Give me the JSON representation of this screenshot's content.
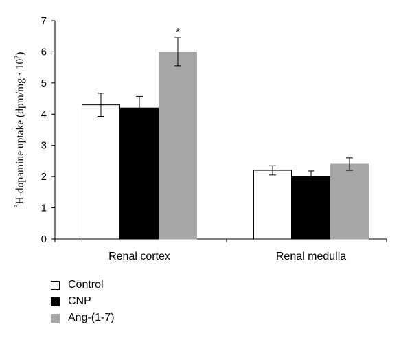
{
  "chart_data": {
    "type": "bar",
    "categories": [
      "Renal cortex",
      "Renal medulla"
    ],
    "series": [
      {
        "name": "Control",
        "values": [
          4.3,
          2.2
        ],
        "errors": [
          0.37,
          0.15
        ],
        "color": "#ffffff",
        "stroke": "#000000"
      },
      {
        "name": "CNP",
        "values": [
          4.2,
          2.0
        ],
        "errors": [
          0.37,
          0.18
        ],
        "color": "#000000",
        "stroke": "#000000"
      },
      {
        "name": "Ang-(1-7)",
        "values": [
          6.0,
          2.4
        ],
        "errors": [
          0.45,
          0.2
        ],
        "color": "#a6a6a6",
        "stroke": "#a6a6a6"
      }
    ],
    "annotations": [
      {
        "text": "*",
        "category": "Renal cortex",
        "series": "Ang-(1-7)"
      }
    ],
    "ylabel": {
      "superscript": "3",
      "main": "H-dopamine uptake (dpm/mg · 10",
      "exp": "2",
      "close": ")"
    },
    "xlabel": "",
    "title": "",
    "ylim": [
      0,
      7
    ],
    "yticks": [
      0,
      1,
      2,
      3,
      4,
      5,
      6,
      7
    ],
    "grid": false,
    "legend_position": "bottom-left"
  }
}
